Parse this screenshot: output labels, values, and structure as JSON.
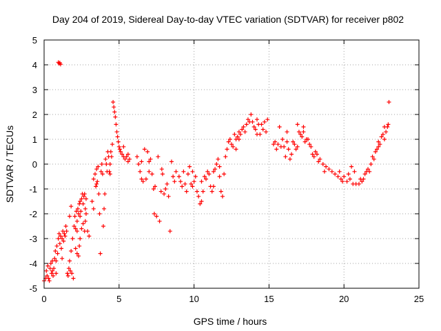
{
  "chart_data": {
    "type": "scatter",
    "title": "Day 204 of 2019, Sidereal Day-to-day VTEC variation (SDTVAR) for receiver p802",
    "xlabel": "GPS time / hours",
    "ylabel": "SDTVAR / TECUs",
    "xlim": [
      0,
      25
    ],
    "ylim": [
      -5,
      5
    ],
    "xticks": [
      0,
      5,
      10,
      15,
      20,
      25
    ],
    "yticks": [
      -5,
      -4,
      -3,
      -2,
      -1,
      0,
      1,
      2,
      3,
      4,
      5
    ],
    "grid": true,
    "marker": "+",
    "color": "#ff0000",
    "series": [
      {
        "name": "SDTVAR",
        "points": [
          [
            0.0,
            -4.7
          ],
          [
            0.1,
            -4.6
          ],
          [
            0.15,
            -4.3
          ],
          [
            0.2,
            -4.5
          ],
          [
            0.25,
            -4.1
          ],
          [
            0.3,
            -4.6
          ],
          [
            0.35,
            -4.7
          ],
          [
            0.4,
            -4.2
          ],
          [
            0.45,
            -4.0
          ],
          [
            0.5,
            -4.4
          ],
          [
            0.55,
            -3.9
          ],
          [
            0.6,
            -4.5
          ],
          [
            0.65,
            -4.2
          ],
          [
            0.7,
            -3.8
          ],
          [
            0.75,
            -3.5
          ],
          [
            0.8,
            -3.9
          ],
          [
            0.85,
            -3.3
          ],
          [
            0.9,
            -3.6
          ],
          [
            0.95,
            -3.0
          ],
          [
            1.0,
            -2.8
          ],
          [
            1.05,
            -3.2
          ],
          [
            1.1,
            -2.9
          ],
          [
            1.15,
            -3.4
          ],
          [
            1.2,
            -3.0
          ],
          [
            1.25,
            -2.7
          ],
          [
            1.3,
            -3.1
          ],
          [
            1.35,
            -2.8
          ],
          [
            1.4,
            -2.9
          ],
          [
            1.45,
            -2.5
          ],
          [
            1.5,
            -2.7
          ],
          [
            0.95,
            4.1
          ],
          [
            1.0,
            4.05
          ],
          [
            1.05,
            4.08
          ],
          [
            1.1,
            4.02
          ],
          [
            1.55,
            -4.4
          ],
          [
            1.6,
            -4.5
          ],
          [
            1.65,
            -4.2
          ],
          [
            1.7,
            -3.9
          ],
          [
            1.75,
            -4.3
          ],
          [
            1.8,
            -3.5
          ],
          [
            1.85,
            -4.4
          ],
          [
            1.9,
            -3.0
          ],
          [
            1.95,
            -4.6
          ],
          [
            2.0,
            -2.5
          ],
          [
            2.05,
            -2.1
          ],
          [
            2.1,
            -2.6
          ],
          [
            2.15,
            -1.9
          ],
          [
            2.2,
            -2.3
          ],
          [
            2.25,
            -1.8
          ],
          [
            2.3,
            -2.0
          ],
          [
            2.35,
            -1.6
          ],
          [
            2.4,
            -1.5
          ],
          [
            2.45,
            -1.9
          ],
          [
            2.5,
            -1.4
          ],
          [
            2.55,
            -1.2
          ],
          [
            2.6,
            -1.6
          ],
          [
            2.65,
            -1.3
          ],
          [
            2.7,
            -1.2
          ],
          [
            2.75,
            -1.8
          ],
          [
            2.8,
            -2.0
          ],
          [
            2.1,
            -3.4
          ],
          [
            2.2,
            -3.6
          ],
          [
            2.3,
            -3.7
          ],
          [
            2.35,
            -3.3
          ],
          [
            2.4,
            -3.0
          ],
          [
            2.5,
            -2.6
          ],
          [
            2.6,
            -2.4
          ],
          [
            2.7,
            -2.7
          ],
          [
            2.75,
            -2.3
          ],
          [
            2.8,
            -1.4
          ],
          [
            3.3,
            -0.6
          ],
          [
            3.4,
            -0.4
          ],
          [
            3.45,
            -0.9
          ],
          [
            3.5,
            -0.2
          ],
          [
            3.55,
            -0.7
          ],
          [
            3.6,
            -0.1
          ],
          [
            3.65,
            -1.2
          ],
          [
            3.7,
            -2.0
          ],
          [
            3.75,
            -3.6
          ],
          [
            3.8,
            -0.3
          ],
          [
            3.85,
            0.0
          ],
          [
            3.9,
            -0.4
          ],
          [
            3.95,
            -2.5
          ],
          [
            4.0,
            -1.8
          ],
          [
            4.05,
            -1.2
          ],
          [
            4.1,
            0.2
          ],
          [
            4.15,
            0.0
          ],
          [
            4.2,
            -0.3
          ],
          [
            4.25,
            0.5
          ],
          [
            4.3,
            0.3
          ],
          [
            4.35,
            -0.3
          ],
          [
            4.4,
            0.0
          ],
          [
            4.45,
            0.5
          ],
          [
            4.5,
            0.3
          ],
          [
            4.55,
            0.8
          ],
          [
            4.6,
            2.5
          ],
          [
            4.65,
            2.3
          ],
          [
            4.7,
            2.1
          ],
          [
            4.75,
            1.9
          ],
          [
            4.8,
            1.6
          ],
          [
            4.85,
            1.3
          ],
          [
            4.9,
            1.1
          ],
          [
            4.95,
            0.9
          ],
          [
            5.0,
            0.7
          ],
          [
            5.05,
            0.6
          ],
          [
            5.1,
            0.5
          ],
          [
            5.2,
            0.4
          ],
          [
            5.3,
            0.3
          ],
          [
            5.4,
            0.2
          ],
          [
            5.5,
            0.3
          ],
          [
            5.6,
            0.1
          ],
          [
            5.7,
            0.2
          ],
          [
            6.2,
            0.3
          ],
          [
            6.3,
            0.0
          ],
          [
            6.4,
            -0.3
          ],
          [
            6.5,
            0.1
          ],
          [
            6.6,
            -0.7
          ],
          [
            6.7,
            0.6
          ],
          [
            6.8,
            -0.6
          ],
          [
            6.9,
            0.5
          ],
          [
            7.0,
            0.1
          ],
          [
            7.1,
            0.2
          ],
          [
            7.2,
            -0.4
          ],
          [
            7.3,
            -1.0
          ],
          [
            7.35,
            -2.0
          ],
          [
            7.4,
            -0.9
          ],
          [
            7.5,
            -2.1
          ],
          [
            7.6,
            0.3
          ],
          [
            7.7,
            -2.3
          ],
          [
            7.8,
            -1.1
          ],
          [
            7.85,
            -0.2
          ],
          [
            7.9,
            -0.4
          ],
          [
            8.0,
            -1.2
          ],
          [
            8.1,
            -1.0
          ],
          [
            8.2,
            -0.8
          ],
          [
            8.3,
            -1.3
          ],
          [
            8.4,
            -2.7
          ],
          [
            8.5,
            0.1
          ],
          [
            8.6,
            -0.5
          ],
          [
            8.7,
            -0.7
          ],
          [
            9.0,
            -0.5
          ],
          [
            9.2,
            -0.9
          ],
          [
            9.4,
            -0.8
          ],
          [
            9.5,
            -1.1
          ],
          [
            9.6,
            -0.4
          ],
          [
            9.7,
            -0.1
          ],
          [
            9.8,
            -0.8
          ],
          [
            9.9,
            -0.9
          ],
          [
            10.0,
            -0.7
          ],
          [
            10.1,
            -0.5
          ],
          [
            10.2,
            -1.1
          ],
          [
            10.3,
            -1.3
          ],
          [
            10.4,
            -1.6
          ],
          [
            10.5,
            -1.5
          ],
          [
            10.6,
            -1.1
          ],
          [
            10.7,
            -0.5
          ],
          [
            10.8,
            -0.6
          ],
          [
            10.9,
            -0.3
          ],
          [
            11.0,
            -0.4
          ],
          [
            11.1,
            -0.9
          ],
          [
            11.2,
            -1.1
          ],
          [
            11.3,
            -0.3
          ],
          [
            11.4,
            -0.2
          ],
          [
            11.5,
            0.0
          ],
          [
            11.6,
            0.2
          ],
          [
            11.7,
            -0.1
          ],
          [
            11.8,
            -1.1
          ],
          [
            11.9,
            -1.3
          ],
          [
            12.0,
            -0.4
          ],
          [
            12.1,
            0.3
          ],
          [
            12.2,
            0.6
          ],
          [
            12.3,
            0.9
          ],
          [
            12.4,
            1.0
          ],
          [
            12.5,
            0.8
          ],
          [
            12.6,
            0.7
          ],
          [
            12.7,
            1.2
          ],
          [
            12.8,
            1.0
          ],
          [
            12.9,
            1.1
          ],
          [
            13.0,
            1.3
          ],
          [
            13.1,
            1.2
          ],
          [
            13.2,
            1.4
          ],
          [
            13.3,
            1.5
          ],
          [
            13.4,
            1.3
          ],
          [
            13.5,
            1.6
          ],
          [
            13.6,
            1.8
          ],
          [
            13.7,
            1.7
          ],
          [
            13.8,
            2.0
          ],
          [
            13.9,
            1.7
          ],
          [
            14.0,
            1.5
          ],
          [
            14.1,
            1.4
          ],
          [
            14.2,
            1.8
          ],
          [
            14.3,
            1.6
          ],
          [
            14.4,
            1.2
          ],
          [
            14.5,
            1.6
          ],
          [
            14.6,
            1.4
          ],
          [
            14.7,
            1.7
          ],
          [
            14.8,
            1.3
          ],
          [
            15.4,
            0.9
          ],
          [
            15.5,
            0.6
          ],
          [
            15.6,
            0.8
          ],
          [
            15.7,
            1.5
          ],
          [
            15.8,
            0.7
          ],
          [
            15.9,
            1.0
          ],
          [
            16.0,
            0.7
          ],
          [
            16.1,
            0.3
          ],
          [
            16.2,
            0.9
          ],
          [
            16.3,
            0.6
          ],
          [
            16.4,
            0.2
          ],
          [
            16.5,
            0.4
          ],
          [
            16.6,
            0.9
          ],
          [
            16.7,
            0.8
          ],
          [
            16.8,
            0.6
          ],
          [
            16.9,
            0.7
          ],
          [
            17.0,
            1.3
          ],
          [
            17.1,
            1.2
          ],
          [
            17.2,
            1.1
          ],
          [
            17.3,
            1.3
          ],
          [
            17.4,
            0.9
          ],
          [
            17.5,
            1.0
          ],
          [
            17.6,
            1.0
          ],
          [
            17.7,
            0.8
          ],
          [
            17.8,
            0.7
          ],
          [
            17.9,
            0.4
          ],
          [
            18.0,
            0.3
          ],
          [
            18.1,
            0.5
          ],
          [
            18.2,
            0.4
          ],
          [
            18.4,
            0.2
          ],
          [
            18.6,
            0.0
          ],
          [
            18.8,
            -0.1
          ],
          [
            19.0,
            -0.2
          ],
          [
            19.2,
            -0.3
          ],
          [
            19.4,
            -0.4
          ],
          [
            19.6,
            -0.5
          ],
          [
            19.8,
            -0.6
          ],
          [
            20.0,
            -0.5
          ],
          [
            20.2,
            -0.7
          ],
          [
            20.4,
            -0.6
          ],
          [
            20.5,
            -0.1
          ],
          [
            20.6,
            -0.8
          ],
          [
            20.7,
            -0.3
          ],
          [
            20.8,
            -0.8
          ],
          [
            21.0,
            -0.8
          ],
          [
            21.1,
            -0.6
          ],
          [
            21.2,
            -0.7
          ],
          [
            21.3,
            -0.6
          ],
          [
            21.4,
            -0.4
          ],
          [
            21.6,
            -0.2
          ],
          [
            21.7,
            -0.3
          ],
          [
            21.8,
            0.0
          ],
          [
            21.9,
            0.3
          ],
          [
            22.0,
            0.2
          ],
          [
            22.1,
            0.5
          ],
          [
            22.2,
            0.6
          ],
          [
            22.3,
            0.9
          ],
          [
            22.4,
            0.8
          ],
          [
            22.5,
            1.1
          ],
          [
            22.6,
            1.2
          ],
          [
            22.7,
            1.5
          ],
          [
            22.8,
            1.3
          ],
          [
            22.9,
            1.5
          ],
          [
            22.95,
            1.6
          ],
          [
            23.0,
            2.5
          ],
          [
            20.3,
            -0.4
          ],
          [
            19.9,
            -0.7
          ],
          [
            19.7,
            -0.3
          ],
          [
            18.3,
            0.1
          ],
          [
            16.9,
            1.6
          ],
          [
            17.3,
            1.5
          ],
          [
            14.9,
            1.8
          ],
          [
            14.2,
            1.2
          ],
          [
            13.0,
            1.0
          ],
          [
            12.8,
            0.6
          ],
          [
            5.3,
            0.7
          ],
          [
            5.6,
            0.4
          ],
          [
            6.5,
            -0.6
          ],
          [
            7.0,
            -0.3
          ],
          [
            9.1,
            -0.7
          ],
          [
            9.3,
            -0.3
          ],
          [
            10.5,
            -0.7
          ],
          [
            11.7,
            -0.5
          ],
          [
            2.9,
            -2.7
          ],
          [
            3.0,
            -2.9
          ],
          [
            1.7,
            -2.1
          ],
          [
            1.8,
            -1.7
          ],
          [
            2.2,
            -2.7
          ],
          [
            2.4,
            -2.1
          ],
          [
            0.8,
            -4.4
          ],
          [
            1.2,
            -3.8
          ],
          [
            0.55,
            -4.3
          ],
          [
            3.2,
            -1.5
          ],
          [
            3.3,
            -1.8
          ],
          [
            3.5,
            -0.8
          ],
          [
            8.8,
            -0.3
          ],
          [
            9.9,
            -0.3
          ],
          [
            11.3,
            -0.9
          ],
          [
            15.3,
            0.8
          ],
          [
            16.2,
            1.3
          ],
          [
            18.7,
            -0.3
          ],
          [
            21.5,
            -0.3
          ],
          [
            22.3,
            0.7
          ],
          [
            22.7,
            1.0
          ],
          [
            4.4,
            -0.4
          ]
        ]
      }
    ]
  }
}
